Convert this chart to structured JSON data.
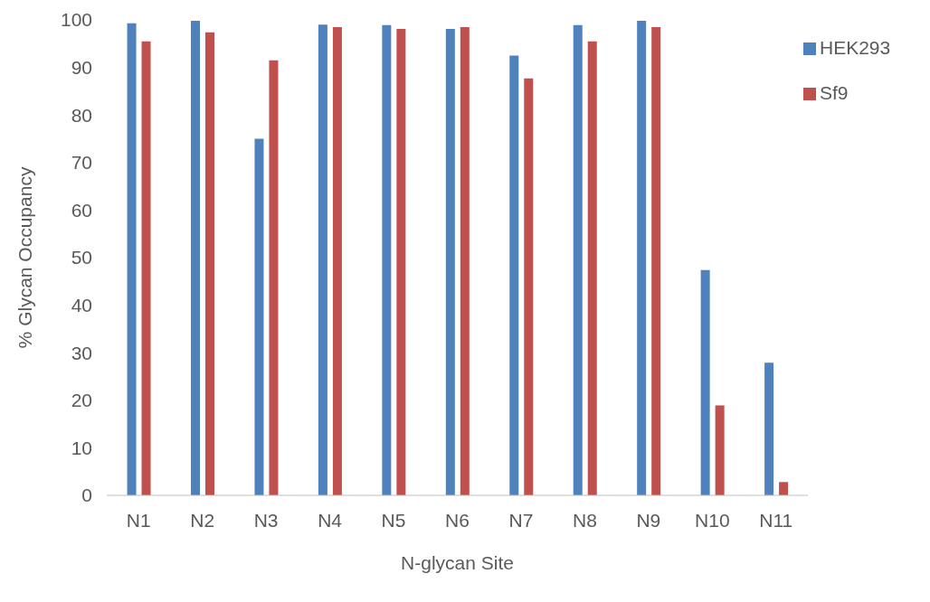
{
  "chart_data": {
    "type": "bar",
    "xlabel": "N-glycan Site",
    "ylabel": "% Glycan Occupancy",
    "categories": [
      "N1",
      "N2",
      "N3",
      "N4",
      "N5",
      "N6",
      "N7",
      "N8",
      "N9",
      "N10",
      "N11"
    ],
    "series": [
      {
        "name": "HEK293",
        "color": "#4f81bd",
        "values": [
          99.3,
          99.8,
          75,
          99,
          98.9,
          98.1,
          92.5,
          98.9,
          99.8,
          47.4,
          27.9
        ]
      },
      {
        "name": "Sf9",
        "color": "#c0504d",
        "values": [
          95.5,
          97.4,
          91.5,
          98.5,
          98.1,
          98.5,
          87.7,
          95.5,
          98.5,
          18.9,
          2.8
        ]
      }
    ],
    "ylim": [
      0,
      100
    ],
    "yticks": [
      0,
      10,
      20,
      30,
      40,
      50,
      60,
      70,
      80,
      90,
      100
    ],
    "grid": false,
    "legend": "top right"
  }
}
